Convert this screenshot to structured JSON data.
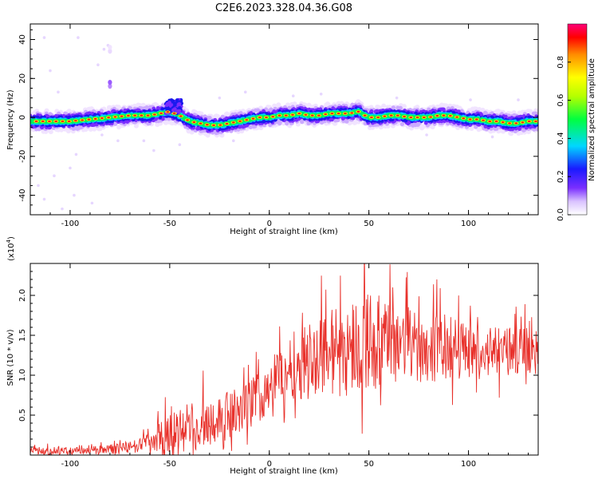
{
  "title": "C2E6.2023.328.04.36.G08",
  "chart_data": [
    {
      "type": "heatmap",
      "xlabel": "Height of straight line (km)",
      "ylabel": "Frequency (Hz)",
      "xlim": [
        -120,
        135
      ],
      "ylim": [
        -50,
        48
      ],
      "xticks": [
        "-100",
        "-50",
        "0",
        "50",
        "100"
      ],
      "yticks": [
        "-40",
        "-20",
        "0",
        "20",
        "40"
      ],
      "ridge": {
        "x": [
          -120,
          -110,
          -100,
          -90,
          -80,
          -70,
          -60,
          -55,
          -50,
          -45,
          -40,
          -35,
          -30,
          -25,
          -20,
          -15,
          -10,
          -5,
          0,
          5,
          10,
          15,
          20,
          25,
          30,
          35,
          40,
          45,
          48,
          50,
          55,
          60,
          65,
          70,
          75,
          80,
          85,
          90,
          95,
          100,
          105,
          110,
          115,
          120,
          125,
          130,
          135
        ],
        "freq": [
          -2,
          -2,
          -2,
          -1,
          0,
          1,
          1,
          2,
          3,
          1,
          -2,
          -3,
          -4,
          -4,
          -3,
          -2,
          -1,
          0,
          0,
          1,
          1,
          2,
          1,
          1,
          2,
          2,
          2,
          3,
          1,
          0,
          0,
          1,
          1,
          0,
          0,
          0,
          1,
          1,
          0,
          -1,
          -1,
          -2,
          -2,
          -3,
          -3,
          -2,
          -2
        ]
      },
      "colorbar": {
        "label": "Normalized spectral amplitude",
        "ticks": [
          "0.0",
          "0.2",
          "0.4",
          "0.6",
          "0.8"
        ],
        "range": [
          0,
          1
        ]
      }
    },
    {
      "type": "line",
      "xlabel": "Height of straight line (km)",
      "ylabel": "SNR (10 * v/v)",
      "multiplier_label": "(x10",
      "multiplier_exp": "4",
      "multiplier_close": ")",
      "xlim": [
        -120,
        135
      ],
      "ylim": [
        0,
        2.4
      ],
      "xticks": [
        "-100",
        "-50",
        "0",
        "50",
        "100"
      ],
      "yticks": [
        "0.5",
        "1.0",
        "1.5",
        "2.0"
      ],
      "color": "#e8302a",
      "envelope": {
        "x": [
          -120,
          -110,
          -100,
          -90,
          -80,
          -75,
          -70,
          -65,
          -60,
          -55,
          -50,
          -45,
          -40,
          -35,
          -30,
          -25,
          -20,
          -15,
          -10,
          -5,
          0,
          5,
          10,
          15,
          20,
          25,
          30,
          35,
          40,
          45,
          50,
          55,
          60,
          65,
          70,
          75,
          80,
          85,
          90,
          95,
          100,
          105,
          110,
          115,
          120,
          125,
          130,
          135
        ],
        "mean": [
          0.05,
          0.05,
          0.05,
          0.06,
          0.07,
          0.08,
          0.1,
          0.12,
          0.15,
          0.18,
          0.22,
          0.3,
          0.35,
          0.4,
          0.42,
          0.45,
          0.5,
          0.55,
          0.62,
          0.75,
          0.9,
          1.0,
          1.1,
          1.15,
          1.2,
          1.25,
          1.3,
          1.3,
          1.35,
          1.4,
          1.45,
          1.4,
          1.4,
          1.4,
          1.4,
          1.35,
          1.35,
          1.35,
          1.35,
          1.35,
          1.3,
          1.3,
          1.3,
          1.3,
          1.3,
          1.3,
          1.3,
          1.25
        ],
        "amp": [
          0.05,
          0.05,
          0.05,
          0.05,
          0.06,
          0.07,
          0.08,
          0.1,
          0.15,
          0.25,
          0.3,
          0.35,
          0.35,
          0.35,
          0.3,
          0.3,
          0.3,
          0.3,
          0.3,
          0.35,
          0.35,
          0.35,
          0.4,
          0.45,
          0.5,
          0.5,
          0.55,
          0.6,
          0.6,
          0.6,
          0.65,
          0.6,
          0.5,
          0.5,
          0.45,
          0.45,
          0.45,
          0.45,
          0.4,
          0.4,
          0.35,
          0.3,
          0.3,
          0.3,
          0.3,
          0.3,
          0.3,
          0.3
        ]
      }
    }
  ]
}
